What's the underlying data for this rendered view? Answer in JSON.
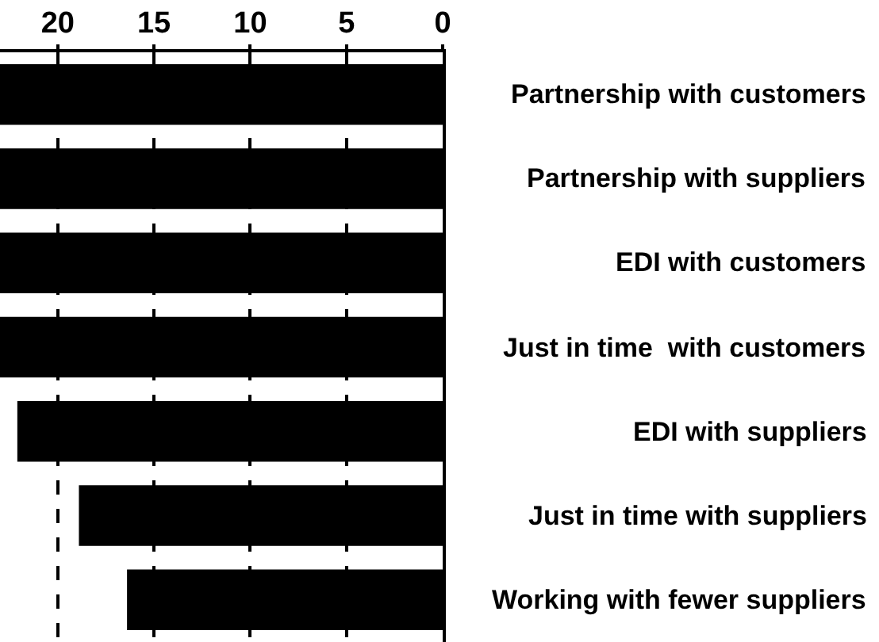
{
  "chart_data": {
    "type": "bar",
    "orientation": "horizontal",
    "categories": [
      "Partnership with customers",
      "Partnership with suppliers",
      "EDI with customers",
      "Just in time  with customers",
      "EDI with suppliers",
      "Just in time with suppliers",
      "Working with fewer suppliers"
    ],
    "values": [
      23,
      23,
      23,
      23,
      22.1,
      18.9,
      16.4
    ],
    "color": "#000000",
    "xlim": [
      23,
      0
    ],
    "xticks": [
      20,
      15,
      10,
      5,
      0
    ],
    "grid": "x"
  }
}
